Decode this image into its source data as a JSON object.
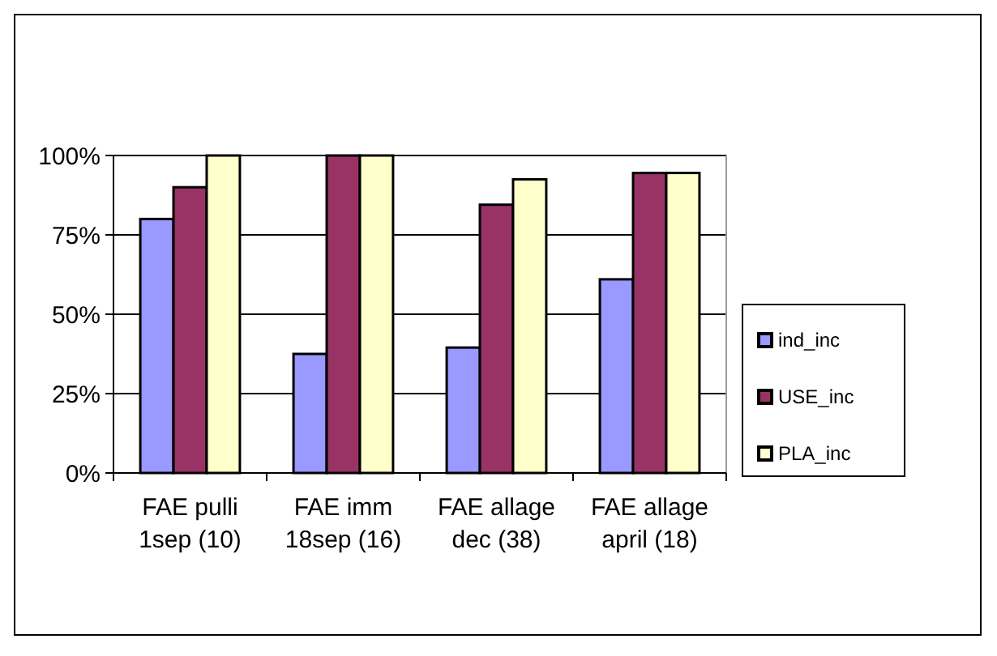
{
  "chart_data": {
    "type": "bar",
    "categories": [
      "FAE pulli 1sep (10)",
      "FAE imm 18sep (16)",
      "FAE allage dec (38)",
      "FAE allage april (18)"
    ],
    "series": [
      {
        "name": "ind_inc",
        "color": "#9999ff",
        "values": [
          80,
          37.5,
          39.5,
          61
        ]
      },
      {
        "name": "USE_inc",
        "color": "#993366",
        "values": [
          90,
          100,
          84.5,
          94.5
        ]
      },
      {
        "name": "PLA_inc",
        "color": "#ffffcc",
        "values": [
          100,
          100,
          92.5,
          94.5
        ]
      }
    ],
    "ylim": [
      0,
      100
    ],
    "yticks": [
      {
        "value": 0,
        "label": "0%"
      },
      {
        "value": 25,
        "label": "25%"
      },
      {
        "value": 50,
        "label": "50%"
      },
      {
        "value": 75,
        "label": "75%"
      },
      {
        "value": 100,
        "label": "100%"
      }
    ],
    "grid": "y",
    "legend": "right"
  }
}
